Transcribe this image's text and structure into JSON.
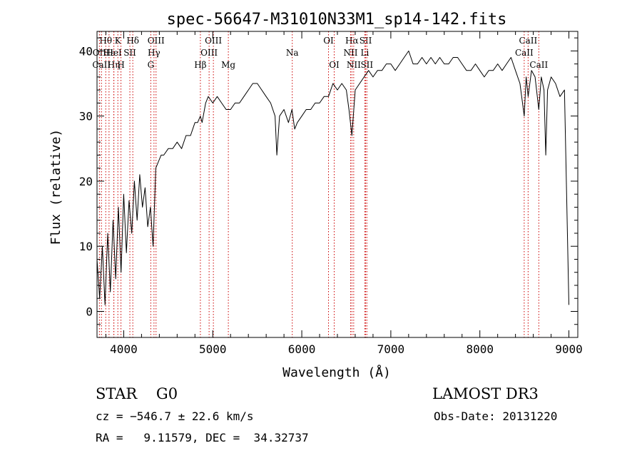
{
  "chart_data": {
    "type": "line",
    "title": "spec-56647-M31010N33M1_sp14-142.fits",
    "xlabel": "Wavelength (Å)",
    "ylabel": "Flux (relative)",
    "xlim": [
      3700,
      9100
    ],
    "ylim": [
      -4,
      43
    ],
    "xticks": [
      4000,
      5000,
      6000,
      7000,
      8000,
      9000
    ],
    "yticks": [
      0,
      10,
      20,
      30,
      40
    ],
    "grid": false,
    "line_color": "#000000",
    "marker_color": "#cc0000",
    "series": [
      {
        "x": [
          3700,
          3730,
          3760,
          3790,
          3820,
          3850,
          3880,
          3910,
          3940,
          3970,
          4000,
          4030,
          4060,
          4090,
          4120,
          4150,
          4180,
          4210,
          4240,
          4270,
          4300,
          4330,
          4360,
          4390,
          4420,
          4450,
          4500,
          4550,
          4600,
          4650,
          4700,
          4750,
          4800,
          4830,
          4861,
          4880,
          4920,
          4950,
          5000,
          5050,
          5100,
          5150,
          5200,
          5250,
          5300,
          5350,
          5400,
          5450,
          5500,
          5550,
          5600,
          5650,
          5700,
          5720,
          5750,
          5800,
          5850,
          5890,
          5920,
          5950,
          6000,
          6050,
          6100,
          6150,
          6200,
          6250,
          6300,
          6350,
          6400,
          6450,
          6500,
          6530,
          6563,
          6600,
          6650,
          6700,
          6750,
          6800,
          6850,
          6900,
          6950,
          7000,
          7050,
          7100,
          7150,
          7200,
          7250,
          7300,
          7350,
          7400,
          7450,
          7500,
          7550,
          7600,
          7650,
          7700,
          7750,
          7800,
          7850,
          7900,
          7950,
          8000,
          8050,
          8100,
          8150,
          8200,
          8250,
          8300,
          8350,
          8400,
          8450,
          8498,
          8520,
          8542,
          8580,
          8620,
          8662,
          8690,
          8720,
          8740,
          8760,
          8800,
          8850,
          8900,
          8950,
          9000
        ],
        "y": [
          8,
          2,
          10,
          1,
          12,
          3,
          14,
          5,
          16,
          6,
          18,
          9,
          17,
          12,
          20,
          14,
          21,
          16,
          19,
          13,
          16,
          10,
          22,
          23,
          24,
          24,
          25,
          25,
          26,
          25,
          27,
          27,
          29,
          29,
          30,
          29,
          32,
          33,
          32,
          33,
          32,
          31,
          31,
          32,
          32,
          33,
          34,
          35,
          35,
          34,
          33,
          32,
          30,
          24,
          30,
          31,
          29,
          31,
          28,
          29,
          30,
          31,
          31,
          32,
          32,
          33,
          33,
          35,
          34,
          35,
          34,
          31,
          27,
          34,
          35,
          36,
          37,
          36,
          37,
          37,
          38,
          38,
          37,
          38,
          39,
          40,
          38,
          38,
          39,
          38,
          39,
          38,
          39,
          38,
          38,
          39,
          39,
          38,
          37,
          37,
          38,
          37,
          36,
          37,
          37,
          38,
          37,
          38,
          39,
          37,
          35,
          30,
          36,
          33,
          37,
          36,
          31,
          36,
          34,
          24,
          34,
          36,
          35,
          33,
          34,
          1
        ]
      }
    ],
    "line_markers": [
      {
        "label": "Hθ",
        "x": 3798,
        "row": 0
      },
      {
        "label": "OII",
        "x": 3727,
        "row": 1
      },
      {
        "label": "CaII",
        "x": 3750,
        "row": 2
      },
      {
        "label": "Hε",
        "x": 3835,
        "row": 1
      },
      {
        "label": "Hη",
        "x": 3889,
        "row": 2
      },
      {
        "label": "K",
        "x": 3934,
        "row": 0
      },
      {
        "label": "HeI",
        "x": 3889,
        "row": 1
      },
      {
        "label": "SII",
        "x": 4069,
        "row": 1
      },
      {
        "label": "H",
        "x": 3969,
        "row": 2
      },
      {
        "label": "Hδ",
        "x": 4102,
        "row": 0
      },
      {
        "label": "OIII",
        "x": 4363,
        "row": 0
      },
      {
        "label": "Hγ",
        "x": 4340,
        "row": 1
      },
      {
        "label": "G",
        "x": 4304,
        "row": 2
      },
      {
        "label": "OIII",
        "x": 5007,
        "row": 0
      },
      {
        "label": "OIII",
        "x": 4959,
        "row": 1
      },
      {
        "label": "Hβ",
        "x": 4861,
        "row": 2
      },
      {
        "label": "Mg",
        "x": 5175,
        "row": 2
      },
      {
        "label": "Na",
        "x": 5893,
        "row": 1
      },
      {
        "label": "OI",
        "x": 6300,
        "row": 0
      },
      {
        "label": "OI",
        "x": 6364,
        "row": 2
      },
      {
        "label": "Hα",
        "x": 6563,
        "row": 0
      },
      {
        "label": "SII",
        "x": 6717,
        "row": 0
      },
      {
        "label": "NII",
        "x": 6548,
        "row": 1
      },
      {
        "label": "Li",
        "x": 6708,
        "row": 1
      },
      {
        "label": "NII",
        "x": 6583,
        "row": 2
      },
      {
        "label": "SII",
        "x": 6731,
        "row": 2
      },
      {
        "label": "CaII",
        "x": 8542,
        "row": 0
      },
      {
        "label": "CaII",
        "x": 8498,
        "row": 1
      },
      {
        "label": "CaII",
        "x": 8662,
        "row": 2
      }
    ]
  },
  "info": {
    "class_text": "STAR    G0",
    "survey": "LAMOST DR3",
    "redshift": "cz = −546.7 ± 22.6 km/s",
    "obs_date": "Obs-Date: 20131220",
    "coords": "RA =   9.11579, DEC =  34.32737"
  }
}
